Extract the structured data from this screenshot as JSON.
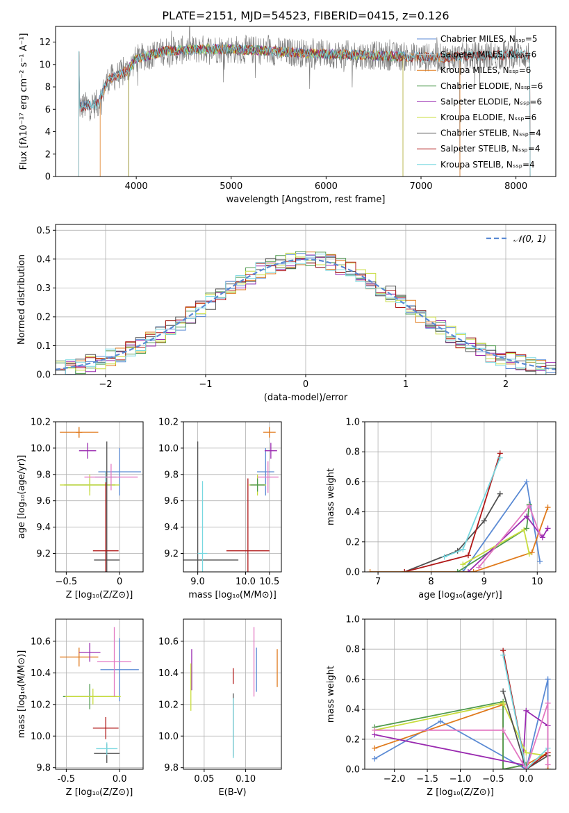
{
  "page_title": "PLATE=2151, MJD=54523, FIBERID=0415, z=0.126",
  "chart_data": [
    {
      "id": "spectrum",
      "type": "line",
      "xlabel": "wavelength [Angstrom, rest frame]",
      "ylabel": "Flux [fλ10⁻¹⁷ erg cm⁻² s⁻¹ A⁻¹]",
      "xlim": [
        3150,
        8420
      ],
      "ylim": [
        0,
        13.4
      ],
      "xticks": [
        4000,
        5000,
        6000,
        7000,
        8000
      ],
      "yticks": [
        0,
        2,
        4,
        6,
        8,
        10,
        12
      ],
      "grid": false,
      "legend_position": "right",
      "series": [
        {
          "name": "Chabrier MILES, N_SSP=5",
          "color": "#5a8ad4",
          "range": [
            3395,
            7410
          ]
        },
        {
          "name": "Salpeter MILES, N_SSP=6",
          "color": "#c0c0c0",
          "range": [
            3395,
            7410
          ]
        },
        {
          "name": "Kroupa MILES, N_SSP=6",
          "color": "#e07a1c",
          "range": [
            3620,
            7410
          ]
        },
        {
          "name": "Chabrier ELODIE, N_SSP=6",
          "color": "#4f9a4f",
          "range": [
            3920,
            6810
          ]
        },
        {
          "name": "Salpeter ELODIE, N_SSP=6",
          "color": "#9a2ab0",
          "range": [
            3920,
            6810
          ]
        },
        {
          "name": "Kroupa ELODIE, N_SSP=6",
          "color": "#c8dc3c",
          "range": [
            3920,
            6810
          ]
        },
        {
          "name": "Chabrier STELIB, N_SSP=4",
          "color": "#505050",
          "range": [
            3395,
            8150
          ]
        },
        {
          "name": "Salpeter STELIB, N_SSP=4",
          "color": "#b01818",
          "range": [
            3395,
            8150
          ]
        },
        {
          "name": "Kroupa STELIB, N_SSP=4",
          "color": "#78d8e0",
          "range": [
            3395,
            8150
          ]
        }
      ],
      "legend_labels": [
        "Chabrier MILES, Nₛₛₚ=5",
        "Salpeter MILES, Nₛₛₚ=6",
        "Kroupa MILES, Nₛₛₚ=6",
        "Chabrier ELODIE, Nₛₛₚ=6",
        "Salpeter ELODIE, Nₛₛₚ=6",
        "Kroupa ELODIE, Nₛₛₚ=6",
        "Chabrier STELIB, Nₛₛₚ=4",
        "Salpeter STELIB, Nₛₛₚ=4",
        "Kroupa STELIB, Nₛₛₚ=4"
      ],
      "data_profile": [
        [
          3400,
          6.2
        ],
        [
          3600,
          6.5
        ],
        [
          3700,
          8.6
        ],
        [
          3900,
          9.4
        ],
        [
          4000,
          10.5
        ],
        [
          4300,
          11.2
        ],
        [
          4800,
          11.4
        ],
        [
          5200,
          11.3
        ],
        [
          5800,
          11.0
        ],
        [
          6500,
          10.8
        ],
        [
          7200,
          10.6
        ],
        [
          8000,
          10.9
        ],
        [
          8200,
          10.8
        ]
      ]
    },
    {
      "id": "residuals",
      "type": "histogram",
      "xlabel": "(data-model)/error",
      "ylabel": "Normed distribution",
      "xlim": [
        -2.5,
        2.5
      ],
      "ylim": [
        0,
        0.52
      ],
      "xticks": [
        -2,
        -1,
        0,
        1,
        2
      ],
      "yticks": [
        0.0,
        0.1,
        0.2,
        0.3,
        0.4,
        0.5
      ],
      "grid": true,
      "legend_position": "top-right",
      "legend_label": "𝒩(0, 1)",
      "reference_curve": {
        "name": "N(0,1)",
        "mean": 0,
        "std": 1,
        "color": "#5a8ad4"
      }
    },
    {
      "id": "age-vs-Z",
      "type": "errorbar",
      "xlabel": "Z [log₁₀(Z/Z⊙)]",
      "ylabel": "age  [log₁₀(age/yr)]",
      "xlim": [
        -0.6,
        0.22
      ],
      "ylim": [
        9.06,
        10.2
      ],
      "xticks": [
        -0.5,
        0.0
      ],
      "yticks": [
        9.2,
        9.4,
        9.6,
        9.8,
        10.0,
        10.2
      ],
      "grid": true,
      "points": [
        {
          "color": "#5a8ad4",
          "x": 0.0,
          "y": 9.82,
          "xerr": 0.2,
          "yerr": 0.18
        },
        {
          "color": "#e07a1c",
          "x": -0.38,
          "y": 10.12,
          "xerr": 0.18,
          "yerr": 0.04
        },
        {
          "color": "#e07a1c",
          "x": -0.38,
          "y": 10.12,
          "xerr": 0.03,
          "yerr": 0.04
        },
        {
          "color": "#4f9a4f",
          "x": -0.28,
          "y": 9.72,
          "xerr": 0.24,
          "yerr": 0.05
        },
        {
          "color": "#9a2ab0",
          "x": -0.3,
          "y": 9.98,
          "xerr": 0.08,
          "yerr": 0.06
        },
        {
          "color": "#c8dc3c",
          "x": -0.28,
          "y": 9.72,
          "xerr": 0.28,
          "yerr": 0.08
        },
        {
          "color": "#505050",
          "x": -0.12,
          "y": 9.15,
          "xerr": 0.12,
          "yerr": 0.9
        },
        {
          "color": "#b01818",
          "x": -0.13,
          "y": 9.22,
          "xerr": 0.12,
          "yerr": 0.6
        },
        {
          "color": "#78d8e0",
          "x": -0.13,
          "y": 9.78,
          "xerr": 0.1,
          "yerr": 0.04
        },
        {
          "color": "#e377c2",
          "x": -0.08,
          "y": 9.78,
          "xerr": 0.25,
          "yerr": 0.1
        }
      ]
    },
    {
      "id": "age-vs-mass",
      "type": "errorbar",
      "xlabel": "mass [log₁₀(M/M⊙)]",
      "ylabel": "",
      "xlim": [
        8.7,
        10.75
      ],
      "ylim": [
        9.06,
        10.2
      ],
      "xticks": [
        9.0,
        10.0,
        10.5
      ],
      "yticks": [
        9.2,
        9.4,
        9.6,
        9.8,
        10.0,
        10.2
      ],
      "grid": true,
      "points": [
        {
          "color": "#5a8ad4",
          "x": 10.42,
          "y": 9.82,
          "xerr": 0.18,
          "yerr": 0.18
        },
        {
          "color": "#e07a1c",
          "x": 10.5,
          "y": 10.12,
          "xerr": 0.13,
          "yerr": 0.04
        },
        {
          "color": "#9a2ab0",
          "x": 10.53,
          "y": 9.98,
          "xerr": 0.13,
          "yerr": 0.06
        },
        {
          "color": "#c8dc3c",
          "x": 10.25,
          "y": 9.72,
          "xerr": 0.18,
          "yerr": 0.08
        },
        {
          "color": "#4f9a4f",
          "x": 10.25,
          "y": 9.72,
          "xerr": 0.15,
          "yerr": 0.05
        },
        {
          "color": "#505050",
          "x": 9.0,
          "y": 9.15,
          "xerr": 0.85,
          "yerr": 0.9
        },
        {
          "color": "#b01818",
          "x": 10.05,
          "y": 9.22,
          "xerr": 0.45,
          "yerr": 0.55
        },
        {
          "color": "#78d8e0",
          "x": 9.1,
          "y": 9.2,
          "xerr": 0.1,
          "yerr": 0.55
        },
        {
          "color": "#e377c2",
          "x": 10.47,
          "y": 9.78,
          "xerr": 0.22,
          "yerr": 0.12
        }
      ]
    },
    {
      "id": "mass-weight-vs-age",
      "type": "line",
      "xlabel": "age  [log₁₀(age/yr)]",
      "ylabel": "mass weight",
      "xlim": [
        6.75,
        10.35
      ],
      "ylim": [
        0,
        1.0
      ],
      "xticks": [
        7,
        8,
        9,
        10
      ],
      "yticks": [
        0.0,
        0.2,
        0.4,
        0.6,
        0.8,
        1.0
      ],
      "grid": true,
      "series": [
        {
          "color": "#505050",
          "x": [
            7.5,
            8.5,
            9.0,
            9.3
          ],
          "y": [
            0.0,
            0.14,
            0.34,
            0.52
          ]
        },
        {
          "color": "#b01818",
          "x": [
            7.5,
            8.7,
            9.3
          ],
          "y": [
            0.0,
            0.11,
            0.79
          ]
        },
        {
          "color": "#78d8e0",
          "x": [
            8.25,
            8.6,
            9.3
          ],
          "y": [
            0.1,
            0.15,
            0.76
          ]
        },
        {
          "color": "#5a8ad4",
          "x": [
            8.6,
            9.8,
            10.05
          ],
          "y": [
            0.0,
            0.6,
            0.07
          ]
        },
        {
          "color": "#e07a1c",
          "x": [
            6.85,
            8.8,
            9.9,
            10.2
          ],
          "y": [
            0.0,
            0.0,
            0.13,
            0.43
          ]
        },
        {
          "color": "#4f9a4f",
          "x": [
            8.5,
            9.8,
            9.85
          ],
          "y": [
            0.0,
            0.29,
            0.45
          ]
        },
        {
          "color": "#9a2ab0",
          "x": [
            8.7,
            9.8,
            10.1,
            10.2
          ],
          "y": [
            0.0,
            0.37,
            0.23,
            0.29
          ]
        },
        {
          "color": "#c8dc3c",
          "x": [
            8.6,
            9.75,
            9.85
          ],
          "y": [
            0.05,
            0.28,
            0.12
          ]
        },
        {
          "color": "#e377c2",
          "x": [
            8.9,
            9.85,
            10.05
          ],
          "y": [
            0.03,
            0.44,
            0.25
          ]
        }
      ]
    },
    {
      "id": "mass-vs-Z",
      "type": "errorbar",
      "xlabel": "Z [log₁₀(Z/Z⊙)]",
      "ylabel": "mass [log₁₀(M/M⊙)]",
      "xlim": [
        -0.6,
        0.22
      ],
      "ylim": [
        9.79,
        10.74
      ],
      "xticks": [
        -0.5,
        0.0
      ],
      "yticks": [
        9.8,
        10.0,
        10.2,
        10.4,
        10.6
      ],
      "grid": true,
      "points": [
        {
          "color": "#5a8ad4",
          "x": 0.0,
          "y": 10.42,
          "xerr": 0.18,
          "yerr": 0.2
        },
        {
          "color": "#e07a1c",
          "x": -0.38,
          "y": 10.5,
          "xerr": 0.18,
          "yerr": 0.06
        },
        {
          "color": "#9a2ab0",
          "x": -0.28,
          "y": 10.53,
          "xerr": 0.1,
          "yerr": 0.06
        },
        {
          "color": "#4f9a4f",
          "x": -0.28,
          "y": 10.25,
          "xerr": 0.25,
          "yerr": 0.08
        },
        {
          "color": "#c8dc3c",
          "x": -0.25,
          "y": 10.25,
          "xerr": 0.26,
          "yerr": 0.05
        },
        {
          "color": "#505050",
          "x": -0.12,
          "y": 9.89,
          "xerr": 0.12,
          "yerr": 0.06
        },
        {
          "color": "#b01818",
          "x": -0.13,
          "y": 10.05,
          "xerr": 0.12,
          "yerr": 0.07
        },
        {
          "color": "#78d8e0",
          "x": -0.12,
          "y": 9.92,
          "xerr": 0.1,
          "yerr": 0.04
        },
        {
          "color": "#e377c2",
          "x": -0.05,
          "y": 10.47,
          "xerr": 0.16,
          "yerr": 0.22
        }
      ]
    },
    {
      "id": "mass-vs-ebv",
      "type": "errorbar",
      "xlabel": "E(B-V)",
      "ylabel": "",
      "xlim": [
        0.025,
        0.143
      ],
      "ylim": [
        9.79,
        10.74
      ],
      "xticks": [
        0.05,
        0.1
      ],
      "yticks": [
        9.8,
        10.0,
        10.2,
        10.4,
        10.6
      ],
      "grid": true,
      "points": [
        {
          "color": "#9a2ab0",
          "x": 0.035,
          "y": 10.42,
          "yerr": 0.13
        },
        {
          "color": "#c8dc3c",
          "x": 0.034,
          "y": 10.31,
          "yerr": 0.15
        },
        {
          "color": "#505050",
          "x": 0.085,
          "y": 10.07,
          "yerr": 0.2
        },
        {
          "color": "#78d8e0",
          "x": 0.085,
          "y": 10.05,
          "yerr": 0.19
        },
        {
          "color": "#b01818",
          "x": 0.085,
          "y": 10.38,
          "yerr": 0.05
        },
        {
          "color": "#e377c2",
          "x": 0.11,
          "y": 10.47,
          "yerr": 0.22
        },
        {
          "color": "#5a8ad4",
          "x": 0.113,
          "y": 10.42,
          "yerr": 0.14
        },
        {
          "color": "#e07a1c",
          "x": 0.138,
          "y": 10.43,
          "yerr": 0.12
        }
      ]
    },
    {
      "id": "mass-weight-vs-Z",
      "type": "line",
      "xlabel": "Z [log₁₀(Z/Z⊙)]",
      "ylabel": "mass weight",
      "xlim": [
        -2.45,
        0.45
      ],
      "ylim": [
        0,
        1.0
      ],
      "xticks": [
        -2.0,
        -1.5,
        -1.0,
        -0.5,
        0.0
      ],
      "yticks": [
        0.0,
        0.2,
        0.4,
        0.6,
        0.8,
        1.0
      ],
      "grid": true,
      "series": [
        {
          "color": "#5a8ad4",
          "x": [
            -2.3,
            -1.3,
            0.0,
            0.33,
            0.33
          ],
          "y": [
            0.07,
            0.32,
            0.0,
            0.6,
            0.0
          ]
        },
        {
          "color": "#e07a1c",
          "x": [
            -2.3,
            -0.35,
            -0.35,
            0.0,
            0.33,
            0.33
          ],
          "y": [
            0.14,
            0.43,
            0.0,
            0.03,
            0.11,
            0.0
          ]
        },
        {
          "color": "#4f9a4f",
          "x": [
            -2.3,
            -0.35,
            -0.35,
            0.0
          ],
          "y": [
            0.28,
            0.45,
            0.0,
            0.03
          ]
        },
        {
          "color": "#9a2ab0",
          "x": [
            -2.3,
            -0.05,
            0.0,
            0.33
          ],
          "y": [
            0.23,
            0.03,
            0.39,
            0.29
          ]
        },
        {
          "color": "#c8dc3c",
          "x": [
            -2.3,
            -0.35,
            0.0,
            0.33
          ],
          "y": [
            0.26,
            0.44,
            0.11,
            0.09
          ]
        },
        {
          "color": "#505050",
          "x": [
            -0.35,
            0.0,
            0.33
          ],
          "y": [
            0.52,
            0.0,
            0.09
          ]
        },
        {
          "color": "#b01818",
          "x": [
            -0.35,
            0.0,
            0.33
          ],
          "y": [
            0.79,
            0.0,
            0.11
          ]
        },
        {
          "color": "#78d8e0",
          "x": [
            -0.35,
            0.0,
            0.33
          ],
          "y": [
            0.76,
            0.0,
            0.14
          ]
        },
        {
          "color": "#e377c2",
          "x": [
            -2.3,
            -0.35,
            0.0,
            0.33,
            0.33
          ],
          "y": [
            0.26,
            0.26,
            0.0,
            0.44,
            0.03
          ]
        }
      ]
    }
  ]
}
